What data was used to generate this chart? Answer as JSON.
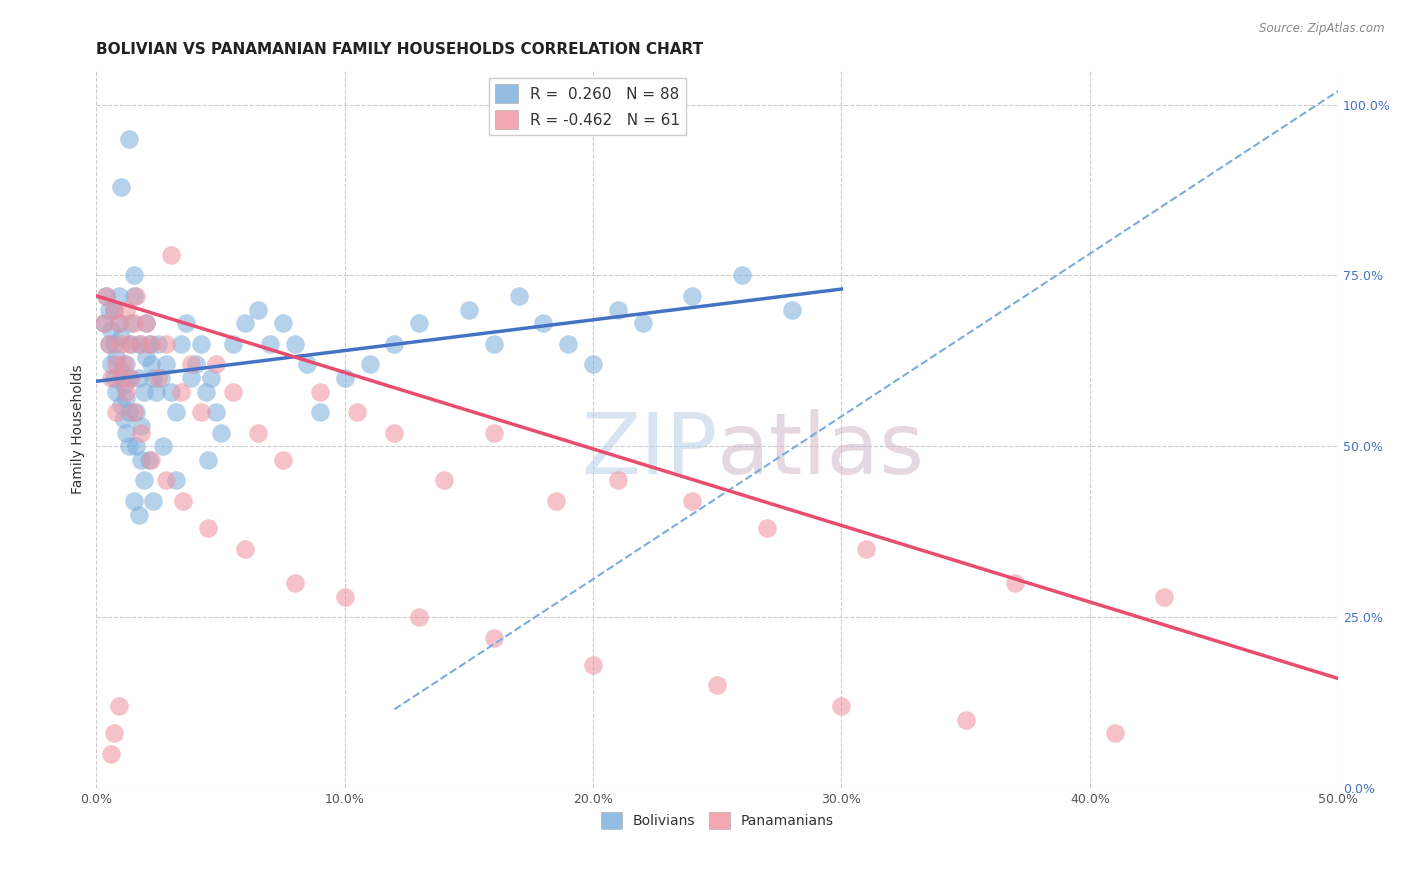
{
  "title": "BOLIVIAN VS PANAMANIAN FAMILY HOUSEHOLDS CORRELATION CHART",
  "source": "Source: ZipAtlas.com",
  "ylabel": "Family Households",
  "xlim": [
    0.0,
    0.5
  ],
  "ylim": [
    0.0,
    1.05
  ],
  "xticks": [
    0.0,
    0.1,
    0.2,
    0.3,
    0.4,
    0.5
  ],
  "xticklabels": [
    "0.0%",
    "10.0%",
    "20.0%",
    "30.0%",
    "40.0%",
    "50.0%"
  ],
  "yticks_right": [
    0.0,
    0.25,
    0.5,
    0.75,
    1.0
  ],
  "yticklabels_right": [
    "0.0%",
    "25.0%",
    "50.0%",
    "75.0%",
    "100.0%"
  ],
  "legend_R1": "R =  0.260",
  "legend_N1": "N = 88",
  "legend_R2": "R = -0.462",
  "legend_N2": "N = 61",
  "color_bolivians": "#7aaddc",
  "color_panamanians": "#f0919f",
  "color_line_bolivians": "#4472c4",
  "color_line_panamanians": "#e84c6e",
  "color_line_dashed": "#7aaddc",
  "watermark_zip": "ZIP",
  "watermark_atlas": "atlas",
  "watermark_color_zip": "#b8cfe8",
  "watermark_color_atlas": "#d0b8c8",
  "background_color": "#ffffff",
  "grid_color": "#cccccc",
  "title_fontsize": 11,
  "axis_label_fontsize": 10,
  "tick_fontsize": 9,
  "legend_fontsize": 11,
  "bolivians_x": [
    0.003,
    0.004,
    0.005,
    0.005,
    0.006,
    0.006,
    0.007,
    0.007,
    0.007,
    0.008,
    0.008,
    0.009,
    0.009,
    0.01,
    0.01,
    0.01,
    0.011,
    0.011,
    0.012,
    0.012,
    0.012,
    0.013,
    0.013,
    0.013,
    0.014,
    0.014,
    0.015,
    0.015,
    0.016,
    0.016,
    0.017,
    0.017,
    0.018,
    0.018,
    0.019,
    0.02,
    0.02,
    0.021,
    0.022,
    0.023,
    0.024,
    0.025,
    0.026,
    0.028,
    0.03,
    0.032,
    0.034,
    0.036,
    0.038,
    0.04,
    0.042,
    0.044,
    0.046,
    0.048,
    0.05,
    0.055,
    0.06,
    0.065,
    0.07,
    0.075,
    0.08,
    0.085,
    0.09,
    0.1,
    0.11,
    0.12,
    0.13,
    0.15,
    0.16,
    0.17,
    0.18,
    0.19,
    0.2,
    0.21,
    0.22,
    0.24,
    0.26,
    0.28,
    0.01,
    0.013,
    0.015,
    0.017,
    0.019,
    0.021,
    0.023,
    0.027,
    0.032,
    0.045
  ],
  "bolivians_y": [
    0.68,
    0.72,
    0.65,
    0.7,
    0.62,
    0.67,
    0.6,
    0.65,
    0.7,
    0.58,
    0.63,
    0.68,
    0.72,
    0.56,
    0.61,
    0.66,
    0.54,
    0.59,
    0.52,
    0.57,
    0.62,
    0.5,
    0.55,
    0.6,
    0.65,
    0.68,
    0.72,
    0.75,
    0.5,
    0.55,
    0.6,
    0.65,
    0.48,
    0.53,
    0.58,
    0.63,
    0.68,
    0.65,
    0.62,
    0.6,
    0.58,
    0.65,
    0.6,
    0.62,
    0.58,
    0.55,
    0.65,
    0.68,
    0.6,
    0.62,
    0.65,
    0.58,
    0.6,
    0.55,
    0.52,
    0.65,
    0.68,
    0.7,
    0.65,
    0.68,
    0.65,
    0.62,
    0.55,
    0.6,
    0.62,
    0.65,
    0.68,
    0.7,
    0.65,
    0.72,
    0.68,
    0.65,
    0.62,
    0.7,
    0.68,
    0.72,
    0.75,
    0.7,
    0.88,
    0.95,
    0.42,
    0.4,
    0.45,
    0.48,
    0.42,
    0.5,
    0.45,
    0.48
  ],
  "panamanians_x": [
    0.003,
    0.004,
    0.005,
    0.006,
    0.007,
    0.008,
    0.009,
    0.01,
    0.011,
    0.012,
    0.013,
    0.014,
    0.015,
    0.016,
    0.018,
    0.02,
    0.022,
    0.025,
    0.028,
    0.03,
    0.034,
    0.038,
    0.042,
    0.048,
    0.055,
    0.065,
    0.075,
    0.09,
    0.105,
    0.12,
    0.14,
    0.16,
    0.185,
    0.21,
    0.24,
    0.27,
    0.31,
    0.37,
    0.43,
    0.008,
    0.01,
    0.012,
    0.015,
    0.018,
    0.022,
    0.028,
    0.035,
    0.045,
    0.06,
    0.08,
    0.1,
    0.13,
    0.16,
    0.2,
    0.25,
    0.3,
    0.35,
    0.41,
    0.006,
    0.007,
    0.009
  ],
  "panamanians_y": [
    0.68,
    0.72,
    0.65,
    0.6,
    0.7,
    0.62,
    0.68,
    0.65,
    0.62,
    0.7,
    0.65,
    0.6,
    0.68,
    0.72,
    0.65,
    0.68,
    0.65,
    0.6,
    0.65,
    0.78,
    0.58,
    0.62,
    0.55,
    0.62,
    0.58,
    0.52,
    0.48,
    0.58,
    0.55,
    0.52,
    0.45,
    0.52,
    0.42,
    0.45,
    0.42,
    0.38,
    0.35,
    0.3,
    0.28,
    0.55,
    0.6,
    0.58,
    0.55,
    0.52,
    0.48,
    0.45,
    0.42,
    0.38,
    0.35,
    0.3,
    0.28,
    0.25,
    0.22,
    0.18,
    0.15,
    0.12,
    0.1,
    0.08,
    0.05,
    0.08,
    0.12
  ],
  "blue_line_x": [
    0.0,
    0.3
  ],
  "blue_line_y": [
    0.595,
    0.73
  ],
  "pink_line_x": [
    0.0,
    0.5
  ],
  "pink_line_y": [
    0.72,
    0.16
  ],
  "dashed_line_x": [
    0.12,
    0.5
  ],
  "dashed_line_y": [
    0.115,
    1.02
  ]
}
